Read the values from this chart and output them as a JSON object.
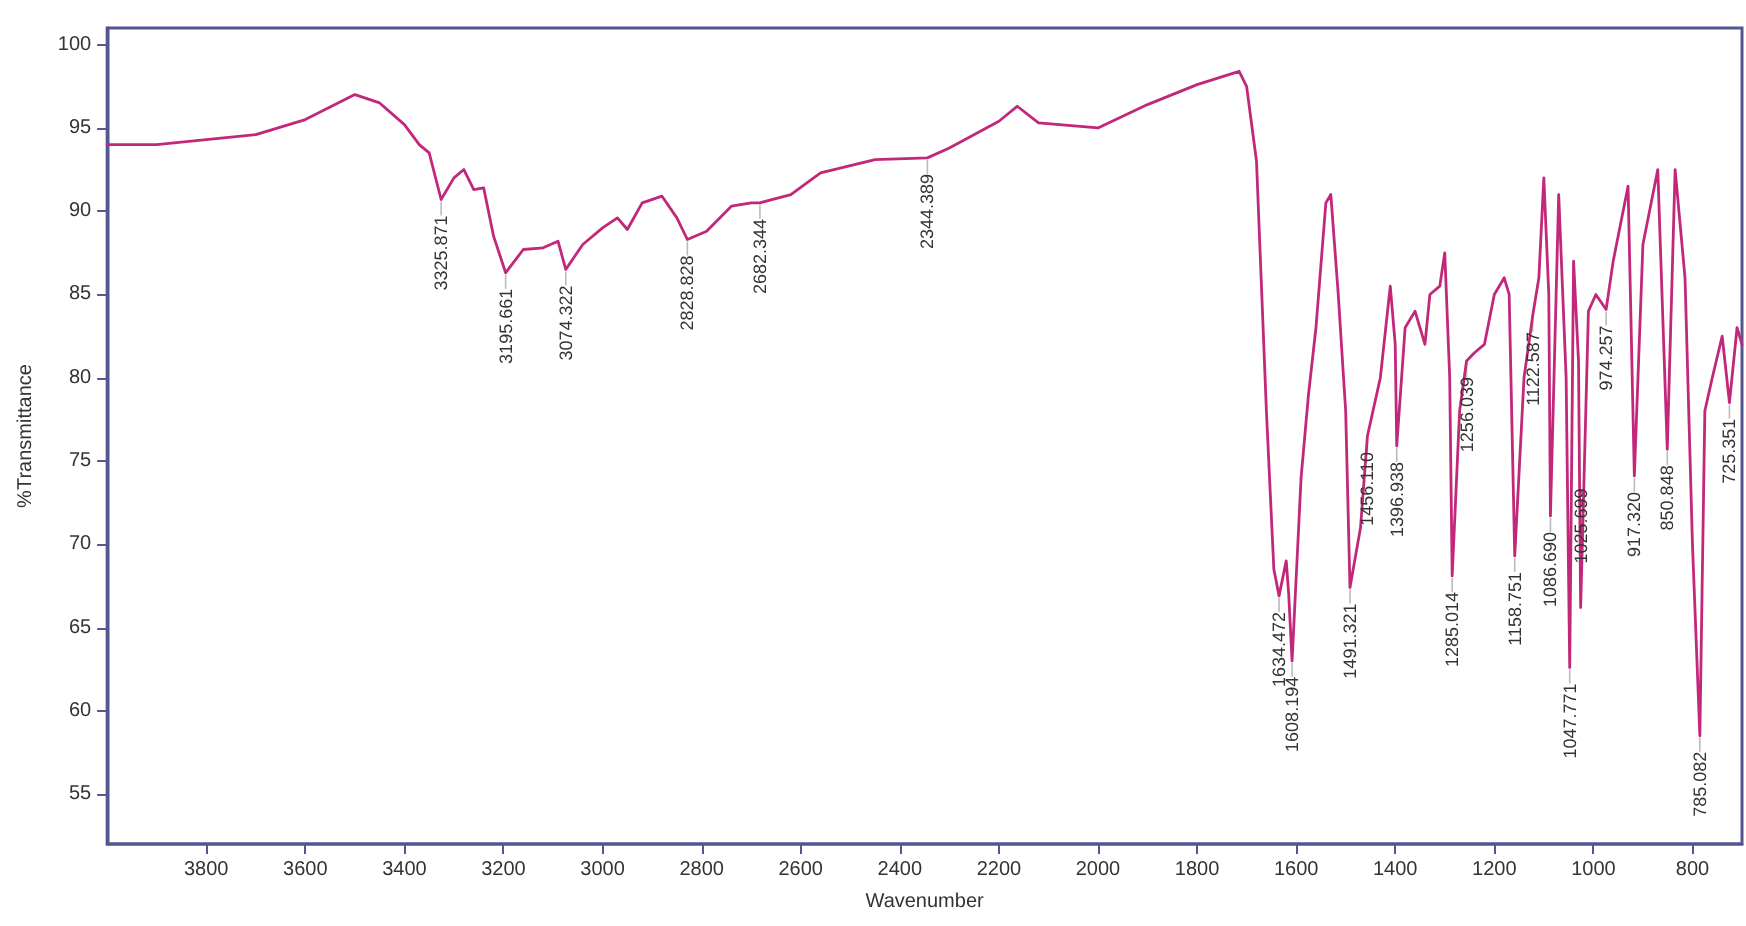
{
  "chart_data": {
    "type": "line",
    "xlabel": "Wavenumber",
    "ylabel": "%Transmittance",
    "xlim": [
      4000,
      700
    ],
    "ylim": [
      52,
      101
    ],
    "xticks": [
      3800,
      3600,
      3400,
      3200,
      3000,
      2800,
      2600,
      2400,
      2200,
      2000,
      1800,
      1600,
      1400,
      1200,
      1000,
      800
    ],
    "yticks": [
      55,
      60,
      65,
      70,
      75,
      80,
      85,
      90,
      95,
      100
    ],
    "grid": false,
    "marker": "none",
    "line_style": "solid",
    "series": [
      {
        "color": "#c2287a",
        "x": [
          4000,
          3900,
          3800,
          3700,
          3600,
          3500,
          3450,
          3400,
          3370,
          3350,
          3325.871,
          3300,
          3280,
          3260,
          3240,
          3220,
          3195.661,
          3160,
          3120,
          3090,
          3074.322,
          3040,
          3000,
          2970,
          2950,
          2920,
          2880,
          2850,
          2828.828,
          2790,
          2740,
          2700,
          2682.344,
          2620,
          2560,
          2450,
          2344.389,
          2300,
          2200,
          2163,
          2120,
          2000,
          1900,
          1800,
          1715,
          1700,
          1680,
          1660,
          1645,
          1634.472,
          1620,
          1615,
          1608.194,
          1590,
          1575,
          1560,
          1540,
          1530,
          1515,
          1500,
          1491.321,
          1470,
          1456.11,
          1430,
          1410,
          1400,
          1396.938,
          1380,
          1360,
          1340,
          1330,
          1310,
          1300,
          1290,
          1285.014,
          1270,
          1256.039,
          1240,
          1220,
          1200,
          1180,
          1170,
          1158.751,
          1140,
          1122.587,
          1110,
          1100,
          1090,
          1086.69,
          1070,
          1055,
          1047.771,
          1040,
          1030,
          1025.699,
          1010,
          995,
          974.257,
          960,
          930,
          917.32,
          900,
          870,
          850.848,
          835,
          815,
          800,
          785.082,
          775,
          760,
          740,
          725.351,
          710,
          700
        ],
        "values": [
          94,
          94,
          94.3,
          94.6,
          95.5,
          97,
          96.5,
          95.2,
          94,
          93.5,
          90.7,
          92,
          92.5,
          91.3,
          91.4,
          88.5,
          86.3,
          87.7,
          87.8,
          88.2,
          86.5,
          88,
          89,
          89.6,
          88.9,
          90.5,
          90.9,
          89.6,
          88.3,
          88.8,
          90.3,
          90.5,
          90.5,
          91,
          92.3,
          93.1,
          93.2,
          93.8,
          95.4,
          96.3,
          95.3,
          95,
          96.4,
          97.6,
          98.4,
          97.5,
          93,
          78,
          68.5,
          66.9,
          69,
          67,
          63,
          74,
          79,
          83,
          90.5,
          91,
          85,
          78,
          67.4,
          71,
          76.5,
          80,
          85.5,
          82,
          75.9,
          83,
          84,
          82,
          85,
          85.5,
          87.5,
          80,
          68.1,
          78,
          81,
          81.5,
          82,
          85,
          86,
          85,
          69.3,
          80,
          83.7,
          86,
          92,
          85,
          71.7,
          91,
          80,
          62.6,
          87,
          81,
          66.2,
          84,
          85,
          84.1,
          87,
          91.5,
          74.1,
          88,
          92.5,
          75.7,
          92.5,
          86,
          70,
          58.5,
          78,
          80,
          82.5,
          78.5,
          83,
          82
        ]
      }
    ],
    "annotations": [
      {
        "text": "3325.871",
        "x": 3325.871,
        "y": 90.7
      },
      {
        "text": "3195.661",
        "x": 3195.661,
        "y": 86.3
      },
      {
        "text": "3074.322",
        "x": 3074.322,
        "y": 86.5
      },
      {
        "text": "2828.828",
        "x": 2828.828,
        "y": 88.3
      },
      {
        "text": "2682.344",
        "x": 2682.344,
        "y": 90.5
      },
      {
        "text": "2344.389",
        "x": 2344.389,
        "y": 93.2
      },
      {
        "text": "1634.472",
        "x": 1634.472,
        "y": 66.9
      },
      {
        "text": "1608.194",
        "x": 1608.194,
        "y": 63
      },
      {
        "text": "1491.321",
        "x": 1491.321,
        "y": 67.4
      },
      {
        "text": "1456.110",
        "x": 1456.11,
        "y": 76.5
      },
      {
        "text": "1396.938",
        "x": 1396.938,
        "y": 75.9
      },
      {
        "text": "1285.014",
        "x": 1285.014,
        "y": 68.1
      },
      {
        "text": "1256.039",
        "x": 1256.039,
        "y": 81
      },
      {
        "text": "1158.751",
        "x": 1158.751,
        "y": 69.3
      },
      {
        "text": "1122.587",
        "x": 1122.587,
        "y": 83.7
      },
      {
        "text": "1086.690",
        "x": 1086.69,
        "y": 71.7
      },
      {
        "text": "1047.771",
        "x": 1047.771,
        "y": 62.6
      },
      {
        "text": "1025.699",
        "x": 1025.699,
        "y": 66.2
      },
      {
        "text": "974.257",
        "x": 974.257,
        "y": 84.1
      },
      {
        "text": "917.320",
        "x": 917.32,
        "y": 74.1
      },
      {
        "text": "850.848",
        "x": 850.848,
        "y": 75.7
      },
      {
        "text": "785.082",
        "x": 785.082,
        "y": 58.5
      },
      {
        "text": "725.351",
        "x": 725.351,
        "y": 78.5
      }
    ]
  }
}
